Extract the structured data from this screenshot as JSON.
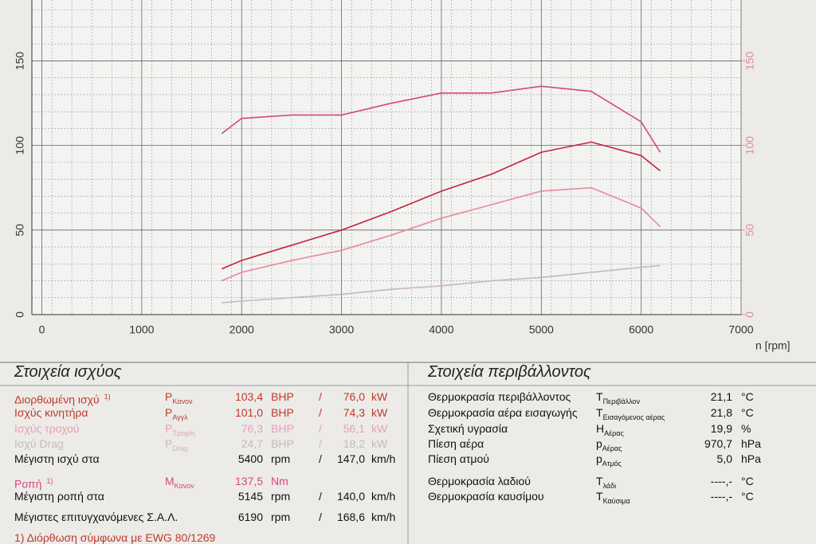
{
  "chart_data": {
    "type": "line",
    "x": [
      1800,
      2000,
      2500,
      3000,
      3500,
      4000,
      4500,
      5000,
      5500,
      6000,
      6190
    ],
    "xlim": [
      -100,
      7000
    ],
    "xticks": [
      0,
      1000,
      2000,
      3000,
      4000,
      5000,
      6000,
      7000
    ],
    "xlabel": "n [rpm]",
    "ylim": [
      0,
      186
    ],
    "yticks": [
      0,
      50,
      100,
      150
    ],
    "y2lim": [
      0,
      186
    ],
    "y2ticks": [
      0,
      50,
      100,
      150
    ],
    "grid": true,
    "series": [
      {
        "color": "#d6477f",
        "axis": "y2",
        "values": [
          107,
          116,
          118,
          118,
          125,
          131,
          131,
          135,
          132,
          114,
          96
        ]
      },
      {
        "color": "#c8203c",
        "values": [
          27,
          32,
          41,
          50,
          61,
          73,
          83,
          96,
          102,
          94,
          85
        ]
      },
      {
        "color": "#e58aa5",
        "values": [
          20,
          25,
          32,
          38,
          47,
          57,
          65,
          73,
          75,
          63,
          52
        ]
      },
      {
        "color": "#c9b6bb",
        "values": [
          7,
          8,
          10,
          12,
          15,
          17,
          20,
          22,
          25,
          28,
          29
        ]
      }
    ]
  },
  "power": {
    "title": "Στοιχεία ισχύος",
    "rows": [
      {
        "color": "#c0392b",
        "label": "Διορθωμένη ισχύ",
        "note": "1)",
        "sym": "P",
        "sub": "Κανον",
        "v1": "103,4",
        "u1": "BHP",
        "sep": "/",
        "v2": "76,0",
        "u2": "kW"
      },
      {
        "color": "#c0392b",
        "label": "Ισχύς κινητήρα",
        "sym": "P",
        "sub": "Αγγλ",
        "v1": "101,0",
        "u1": "BHP",
        "sep": "/",
        "v2": "74,3",
        "u2": "kW"
      },
      {
        "color": "#e8a0b4",
        "label": "Ισχύς τροχού",
        "sym": "P",
        "sub": "Τροχός",
        "v1": "76,3",
        "u1": "BHP",
        "sep": "/",
        "v2": "56,1",
        "u2": "kW"
      },
      {
        "color": "#c4bcbc",
        "label": "Ισχύ Drag",
        "sym": "P",
        "sub": "Drag",
        "v1": "24,7",
        "u1": "BHP",
        "sep": "/",
        "v2": "18,2",
        "u2": "kW"
      },
      {
        "color": "#111111",
        "label": "Μέγιστη ισχύ στα",
        "v1": "5400",
        "u1": "rpm",
        "sep": "/",
        "v2": "147,0",
        "u2": "km/h"
      },
      {
        "color": "#d6477f",
        "label": "Ροπή",
        "note": "1)",
        "sym": "M",
        "sub": "Κανον",
        "v1": "137,5",
        "u1": "Nm"
      },
      {
        "color": "#111111",
        "label": "Μέγιστη ροπή στα",
        "v1": "5145",
        "u1": "rpm",
        "sep": "/",
        "v2": "140,0",
        "u2": "km/h"
      },
      {
        "color": "#111111",
        "label": "Μέγιστες επιτυγχανόμενες Σ.Α.Λ.",
        "v1": "6190",
        "u1": "rpm",
        "sep": "/",
        "v2": "168,6",
        "u2": "km/h"
      }
    ],
    "footnote": "1) Διόρθωση σύμφωνα με EWG 80/1269"
  },
  "environment": {
    "title": "Στοιχεία περιβάλλοντος",
    "rows": [
      {
        "label": "Θερμοκρασία περιβάλλοντος",
        "sym": "T",
        "sub": "Περιβάλλον",
        "v": "21,1",
        "u": "°C"
      },
      {
        "label": "Θερμοκρασία αέρα εισαγωγής",
        "sym": "T",
        "sub": "Εισαγόμενος αέρας",
        "v": "21,8",
        "u": "°C"
      },
      {
        "label": "Σχετική υγρασία",
        "sym": "H",
        "sub": "Αέρας",
        "v": "19,9",
        "u": "%"
      },
      {
        "label": "Πίεση αέρα",
        "sym": "p",
        "sub": "Αέρας",
        "v": "970,7",
        "u": "hPa"
      },
      {
        "label": "Πίεση ατμού",
        "sym": "p",
        "sub": "Ατμός",
        "v": "5,0",
        "u": "hPa"
      },
      {
        "label": "Θερμοκρασία λαδιού",
        "sym": "T",
        "sub": "λάδι",
        "v": "----,-",
        "u": "°C"
      },
      {
        "label": "Θερμοκρασία καυσίμου",
        "sym": "T",
        "sub": "Καύσιμα",
        "v": "----,-",
        "u": "°C"
      }
    ]
  }
}
